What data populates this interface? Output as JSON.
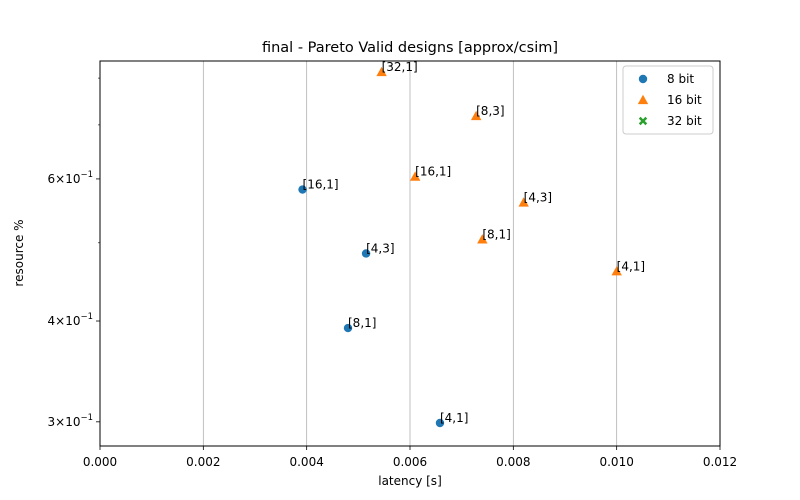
{
  "chart_data": {
    "type": "scatter",
    "title": "final - Pareto Valid designs [approx/csim]",
    "xlabel": "latency [s]",
    "ylabel": "resource %",
    "xlim": [
      0.0,
      0.012
    ],
    "ylim": [
      0.28,
      0.84
    ],
    "yscale": "log",
    "grid": "vertical",
    "legend_position": "top-right",
    "x_ticks": [
      0.0,
      0.002,
      0.004,
      0.006,
      0.008,
      0.01,
      0.012
    ],
    "x_tick_labels": [
      "0.000",
      "0.002",
      "0.004",
      "0.006",
      "0.008",
      "0.010",
      "0.012"
    ],
    "y_major_ticks": [
      0.3,
      0.4,
      0.6
    ],
    "y_major_tick_labels": [
      {
        "mantissa": "3",
        "base": "10",
        "exp": "−1"
      },
      {
        "mantissa": "4",
        "base": "10",
        "exp": "−1"
      },
      {
        "mantissa": "6",
        "base": "10",
        "exp": "−1"
      }
    ],
    "y_minor_ticks": [
      0.5,
      0.7,
      0.8
    ],
    "series": [
      {
        "name": "8 bit",
        "color": "#1f77b4",
        "marker": "circle",
        "points": [
          {
            "x": 0.00392,
            "y": 0.582,
            "label": "[16,1]"
          },
          {
            "x": 0.00515,
            "y": 0.485,
            "label": "[4,3]"
          },
          {
            "x": 0.0048,
            "y": 0.392,
            "label": "[8,1]"
          },
          {
            "x": 0.00658,
            "y": 0.299,
            "label": "[4,1]"
          }
        ]
      },
      {
        "name": "16 bit",
        "color": "#ff7f0e",
        "marker": "triangle",
        "points": [
          {
            "x": 0.00545,
            "y": 0.814,
            "label": "[32,1]"
          },
          {
            "x": 0.00728,
            "y": 0.718,
            "label": "[8,3]"
          },
          {
            "x": 0.0061,
            "y": 0.604,
            "label": "[16,1]"
          },
          {
            "x": 0.0082,
            "y": 0.561,
            "label": "[4,3]"
          },
          {
            "x": 0.0074,
            "y": 0.505,
            "label": "[8,1]"
          },
          {
            "x": 0.01,
            "y": 0.461,
            "label": "[4,1]"
          }
        ]
      },
      {
        "name": "32 bit",
        "color": "#2ca02c",
        "marker": "x",
        "points": []
      }
    ]
  }
}
